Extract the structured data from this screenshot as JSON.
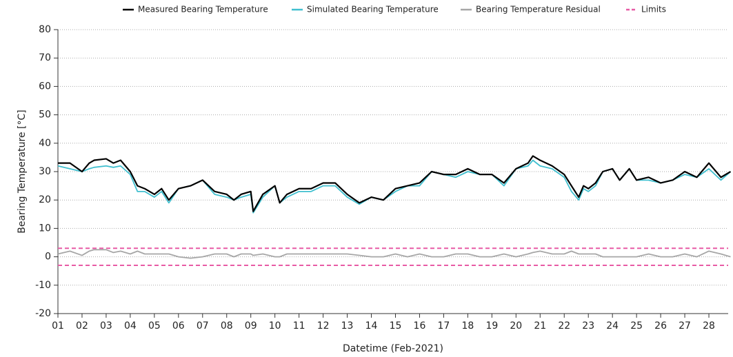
{
  "chart_data": {
    "type": "line",
    "x_label": "Datetime (Feb-2021)",
    "y_label": "Bearing Temperature [°C]",
    "x": [
      1,
      1.5,
      2,
      2.3,
      2.5,
      3,
      3.3,
      3.6,
      4,
      4.3,
      4.6,
      5,
      5.3,
      5.6,
      6,
      6.5,
      7,
      7.5,
      8,
      8.3,
      8.6,
      9,
      9.1,
      9.5,
      10,
      10.2,
      10.5,
      11,
      11.5,
      12,
      12.5,
      13,
      13.5,
      14,
      14.5,
      15,
      15.5,
      16,
      16.5,
      17,
      17.5,
      18,
      18.5,
      19,
      19.5,
      20,
      20.5,
      20.7,
      21,
      21.5,
      22,
      22.3,
      22.6,
      22.8,
      23,
      23.3,
      23.6,
      24,
      24.3,
      24.7,
      25,
      25.5,
      26,
      26.5,
      27,
      27.5,
      28,
      28.5,
      28.9
    ],
    "series": [
      {
        "name": "Measured Bearing Temperature",
        "color": "#000000",
        "values": [
          33,
          33,
          30,
          33,
          34,
          34.5,
          33,
          34,
          30,
          25,
          24,
          22,
          24,
          20,
          24,
          25,
          27,
          23,
          22,
          20,
          22,
          23,
          16,
          22,
          25,
          19,
          22,
          24,
          24,
          26,
          26,
          22,
          19,
          21,
          20,
          24,
          25,
          26,
          30,
          29,
          29,
          31,
          29,
          29,
          26,
          31,
          33,
          35.5,
          34,
          32,
          29,
          25,
          21,
          25,
          24,
          26,
          30,
          31,
          27,
          31,
          27,
          28,
          26,
          27,
          30,
          28,
          33,
          28,
          30
        ]
      },
      {
        "name": "Simulated Bearing Temperature",
        "color": "#3fbfcf",
        "values": [
          32,
          31,
          30,
          31,
          31.5,
          32,
          31.5,
          32,
          29,
          23,
          23,
          21,
          23,
          19,
          24,
          25,
          27,
          22,
          21,
          20,
          21,
          22,
          15.5,
          21,
          25,
          19,
          21,
          23,
          23,
          25,
          25,
          21,
          18.5,
          21,
          20,
          23,
          25,
          25,
          30,
          29,
          28,
          30,
          29,
          29,
          25,
          31,
          32,
          34,
          32,
          31,
          28,
          23,
          20,
          24,
          23,
          25,
          30,
          31,
          27,
          31,
          27,
          27,
          26,
          27,
          29,
          28,
          31,
          27,
          30
        ]
      },
      {
        "name": "Bearing Temperature Residual",
        "color": "#a6a6a6",
        "values": [
          1,
          2,
          0.5,
          2,
          2.5,
          2.5,
          1.5,
          2,
          1,
          2,
          1,
          1,
          1,
          1,
          0,
          -0.5,
          0,
          1,
          1,
          0,
          1,
          1,
          0.5,
          1,
          0,
          0,
          1,
          1,
          1,
          1,
          1,
          1,
          0.5,
          0,
          0,
          1,
          0,
          1,
          0,
          0,
          1,
          1,
          0,
          0,
          1,
          0,
          1,
          1.5,
          2,
          1,
          1,
          2,
          1,
          1,
          1,
          1,
          0,
          0,
          0,
          0,
          0,
          1,
          0,
          0,
          1,
          0,
          2,
          1,
          0
        ]
      }
    ],
    "limits": {
      "name": "Limits",
      "color": "#e75aa5",
      "values": [
        3,
        -3
      ]
    },
    "xlim": [
      1,
      28.8
    ],
    "xticks": [
      {
        "value": 1,
        "label": "01"
      },
      {
        "value": 2,
        "label": "02"
      },
      {
        "value": 3,
        "label": "03"
      },
      {
        "value": 4,
        "label": "04"
      },
      {
        "value": 5,
        "label": "05"
      },
      {
        "value": 6,
        "label": "06"
      },
      {
        "value": 7,
        "label": "07"
      },
      {
        "value": 8,
        "label": "08"
      },
      {
        "value": 9,
        "label": "09"
      },
      10,
      11,
      12,
      13,
      14,
      15,
      16,
      17,
      18,
      19,
      20,
      21,
      22,
      23,
      24,
      25,
      26,
      27,
      28
    ],
    "ylim": [
      -20,
      80
    ],
    "yticks": [
      -20,
      -10,
      0,
      10,
      20,
      30,
      40,
      50,
      60,
      70,
      80
    ],
    "grid": true,
    "legend": "top"
  }
}
